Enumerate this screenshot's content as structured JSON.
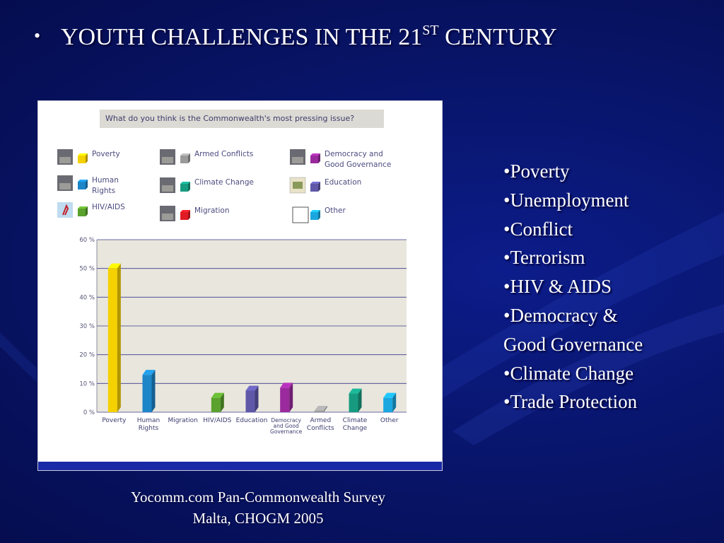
{
  "slide": {
    "bullet_char": "•",
    "title": "YOUTH CHALLENGES IN THE 21",
    "title_sup": "ST",
    "title_tail": " CENTURY"
  },
  "panel": {
    "question": "What do you think is the Commonwealth's most pressing issue?"
  },
  "legend": [
    {
      "label": [
        "Poverty"
      ],
      "color": "#f5d100",
      "thumb": "photo"
    },
    {
      "label": [
        "Human",
        "Rights"
      ],
      "color": "#1d86c8",
      "thumb": "photo"
    },
    {
      "label": [
        "HIV/AIDS"
      ],
      "color": "#5aa12d",
      "thumb": "ribbon"
    },
    {
      "label": [
        "Armed Conflicts"
      ],
      "color": "#9a9a9a",
      "thumb": "photo"
    },
    {
      "label": [
        "Climate Change"
      ],
      "color": "#179b80",
      "thumb": "photo"
    },
    {
      "label": [
        "Migration"
      ],
      "color": "#e01b24",
      "thumb": "photo"
    },
    {
      "label": [
        "Democracy and",
        "Good Governance"
      ],
      "color": "#9b2a9e",
      "thumb": "photo"
    },
    {
      "label": [
        "Education"
      ],
      "color": "#5f58a8",
      "thumb": "book"
    },
    {
      "label": [
        "Other"
      ],
      "color": "#1aa7e0",
      "thumb": "empty"
    }
  ],
  "chart_data": {
    "type": "bar",
    "title": "What do you think is the Commonwealth's most pressing issue?",
    "categories": [
      [
        "Poverty"
      ],
      [
        "Human",
        "Rights"
      ],
      [
        "Migration"
      ],
      [
        "HIV/AIDS"
      ],
      [
        "Education"
      ],
      [
        "Democracy",
        "and Good",
        "Governance"
      ],
      [
        "Armed",
        "Conflicts"
      ],
      [
        "Climate",
        "Change"
      ],
      [
        "Other"
      ]
    ],
    "values": [
      50,
      13,
      0,
      5,
      7.5,
      8.5,
      0.5,
      6.5,
      5
    ],
    "colors": [
      "#f5d100",
      "#1d86c8",
      "#e01b24",
      "#5aa12d",
      "#5f58a8",
      "#9b2a9e",
      "#9a9a9a",
      "#179b80",
      "#1aa7e0"
    ],
    "yticks": [
      "0 %",
      "10 %",
      "20 %",
      "30 %",
      "40 %",
      "50 %",
      "60 %"
    ],
    "ylim": [
      0,
      60
    ],
    "grid": true,
    "legend_position": "top"
  },
  "bullets": [
    "•Poverty",
    "•Unemployment",
    "•Conflict",
    "•Terrorism",
    "•HIV & AIDS",
    "•Democracy &",
    "Good Governance",
    "•Climate Change",
    "•Trade Protection"
  ],
  "caption": {
    "line1": "Yocomm.com Pan-Commonwealth Survey",
    "line2": "Malta, CHOGM 2005"
  }
}
